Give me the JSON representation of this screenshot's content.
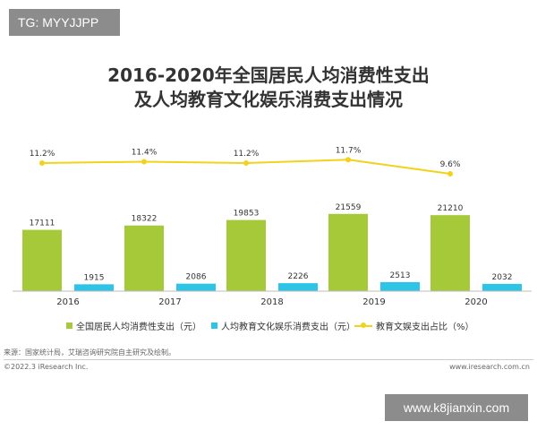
{
  "watermark_top": "TG: MYYJJPP",
  "watermark_bottom": "www.k8jianxin.com",
  "title_line1": "2016-2020年全国居民人均消费性支出",
  "title_line2": "及人均教育文化娱乐消费支出情况",
  "source": "来源：国家统计局，艾瑞咨询研究院自主研究及绘制。",
  "copyright": "©2022.3 iResearch Inc.",
  "website": "www.iresearch.com.cn",
  "colors": {
    "consumption": "#a5c939",
    "education": "#2ec4e6",
    "ratio": "#f2d21a"
  },
  "chart_data": {
    "type": "bar",
    "categories": [
      "2016",
      "2017",
      "2018",
      "2019",
      "2020"
    ],
    "series": [
      {
        "name": "全国居民人均消费性支出（元）",
        "values": [
          17111,
          18322,
          19853,
          21559,
          21210
        ]
      },
      {
        "name": "人均教育文化娱乐消费支出（元）",
        "values": [
          1915,
          2086,
          2226,
          2513,
          2032
        ]
      }
    ],
    "line_series": {
      "name": "教育文娱支出占比（%）",
      "values": [
        11.2,
        11.4,
        11.2,
        11.7,
        9.6
      ],
      "labels": [
        "11.2%",
        "11.4%",
        "11.2%",
        "11.7%",
        "9.6%"
      ]
    },
    "legend_position": "bottom"
  }
}
